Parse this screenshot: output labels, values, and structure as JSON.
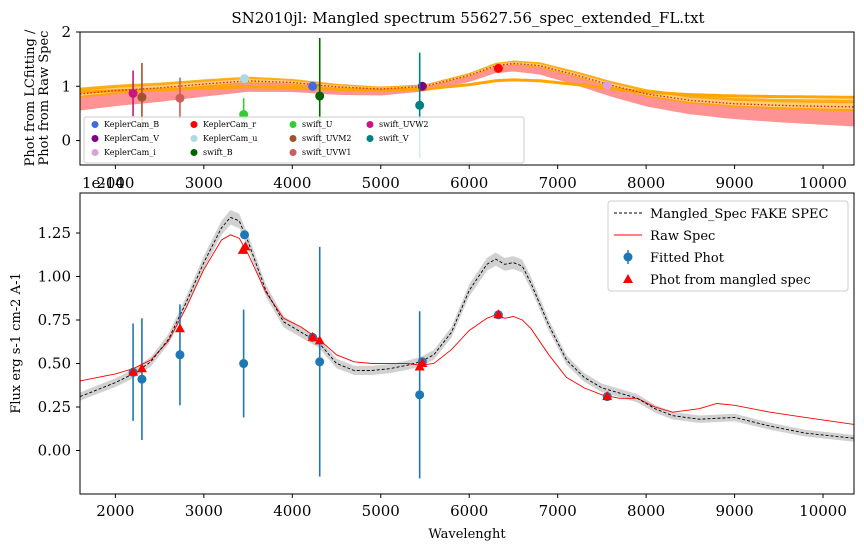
{
  "chart_data": [
    {
      "type": "scatter",
      "title": "SN2010jl: Mangled spectrum 55627.56_spec_extended_FL.txt",
      "ylabel_lines": [
        "Phot from LCfitting /",
        "Phot from Raw Spec"
      ],
      "xlabel": "",
      "xlim": [
        1600,
        10350
      ],
      "ylim": [
        -0.45,
        2.0
      ],
      "xticks": [
        2000,
        3000,
        4000,
        5000,
        6000,
        7000,
        8000,
        9000,
        10000
      ],
      "yticks": [
        0,
        1,
        2
      ],
      "xtick_labels": [
        "2000",
        "3000",
        "4000",
        "5000",
        "6000",
        "7000",
        "8000",
        "9000",
        "10000"
      ],
      "ytick_labels": [
        "0",
        "1",
        "2"
      ],
      "offset_text": "1e-14",
      "legend_position": "lower-left",
      "series": [
        {
          "name": "KeplerCam_B",
          "color": "#4169e1",
          "x": 4230,
          "y": 1.0,
          "err": 0
        },
        {
          "name": "KeplerCam_V",
          "color": "#800080",
          "x": 5470,
          "y": 1.0,
          "err": 0
        },
        {
          "name": "KeplerCam_i",
          "color": "#dda0dd",
          "x": 7560,
          "y": 1.02,
          "err": 0
        },
        {
          "name": "KeplerCam_r",
          "color": "#ff0000",
          "x": 6330,
          "y": 1.33,
          "err": 0
        },
        {
          "name": "KeplerCam_u",
          "color": "#add8e6",
          "x": 3460,
          "y": 1.14,
          "err": 0
        },
        {
          "name": "swift_B",
          "color": "#006400",
          "x": 4310,
          "y": 0.82,
          "err": 1.07
        },
        {
          "name": "swift_U",
          "color": "#32cd32",
          "x": 3450,
          "y": 0.48,
          "err": 0.3
        },
        {
          "name": "swift_UVM2",
          "color": "#a0522d",
          "x": 2300,
          "y": 0.8,
          "err": 0.63
        },
        {
          "name": "swift_UVW1",
          "color": "#cd5c5c",
          "x": 2730,
          "y": 0.78,
          "err": 0.38
        },
        {
          "name": "swift_UVW2",
          "color": "#c71585",
          "x": 2200,
          "y": 0.87,
          "err": 0.42
        },
        {
          "name": "swift_V",
          "color": "#008080",
          "x": 5440,
          "y": 0.65,
          "err": 0.97
        }
      ],
      "ratio_curve": {
        "color": "#e8202a",
        "x": [
          1600,
          2000,
          2500,
          3000,
          3500,
          4000,
          4500,
          5000,
          5500,
          6000,
          6300,
          6500,
          6800,
          7200,
          7600,
          8000,
          8500,
          9000,
          9500,
          10000,
          10350
        ],
        "y": [
          0.86,
          0.92,
          0.97,
          1.04,
          1.1,
          1.07,
          0.99,
          0.95,
          1.0,
          1.2,
          1.38,
          1.42,
          1.38,
          1.21,
          1.02,
          0.86,
          0.74,
          0.68,
          0.65,
          0.63,
          0.62
        ]
      },
      "band_colors": [
        "#ff7f7f",
        "#ffa500",
        "#ffd27f"
      ]
    },
    {
      "type": "line",
      "title": "",
      "xlabel": "Wavelenght",
      "ylabel": "Flux erg s-1 cm-2 A-1",
      "xlim": [
        1600,
        10350
      ],
      "ylim": [
        -0.25,
        1.48
      ],
      "xticks": [
        2000,
        3000,
        4000,
        5000,
        6000,
        7000,
        8000,
        9000,
        10000
      ],
      "yticks": [
        0,
        0.25,
        0.5,
        0.75,
        1.0,
        1.25
      ],
      "xtick_labels": [
        "2000",
        "3000",
        "4000",
        "5000",
        "6000",
        "7000",
        "8000",
        "9000",
        "10000"
      ],
      "ytick_labels": [
        "0.00",
        "0.25",
        "0.50",
        "0.75",
        "1.00",
        "1.25"
      ],
      "legend_position": "top-right",
      "legend": [
        "Mangled_Spec FAKE SPEC",
        "Raw Spec",
        "Fitted Phot",
        "Phot from mangled spec"
      ],
      "mangled_spec": {
        "color": "#000000",
        "x": [
          1600,
          1800,
          2000,
          2200,
          2400,
          2600,
          2800,
          3000,
          3200,
          3300,
          3400,
          3500,
          3700,
          3900,
          4100,
          4300,
          4500,
          4700,
          4900,
          5100,
          5300,
          5450,
          5600,
          5800,
          6000,
          6200,
          6300,
          6400,
          6500,
          6600,
          6700,
          6900,
          7100,
          7300,
          7500,
          7700,
          7900,
          8100,
          8300,
          8600,
          9000,
          9400,
          9800,
          10350
        ],
        "y": [
          0.31,
          0.35,
          0.39,
          0.44,
          0.51,
          0.64,
          0.85,
          1.08,
          1.28,
          1.34,
          1.32,
          1.2,
          0.92,
          0.74,
          0.68,
          0.62,
          0.5,
          0.46,
          0.46,
          0.47,
          0.49,
          0.51,
          0.55,
          0.68,
          0.92,
          1.07,
          1.1,
          1.07,
          1.08,
          1.06,
          0.96,
          0.72,
          0.52,
          0.42,
          0.36,
          0.33,
          0.3,
          0.24,
          0.2,
          0.18,
          0.19,
          0.14,
          0.1,
          0.07
        ]
      },
      "mangled_band_half_width": 0.03,
      "raw_spec": {
        "color": "#ff0000",
        "x": [
          1600,
          1800,
          2000,
          2200,
          2400,
          2600,
          2800,
          3000,
          3200,
          3300,
          3400,
          3500,
          3700,
          3900,
          4100,
          4300,
          4500,
          4700,
          4900,
          5100,
          5300,
          5450,
          5600,
          5800,
          6000,
          6200,
          6300,
          6400,
          6500,
          6600,
          6700,
          6900,
          7100,
          7300,
          7500,
          7700,
          7900,
          8100,
          8300,
          8600,
          8800,
          9000,
          9400,
          9800,
          10350
        ],
        "y": [
          0.4,
          0.42,
          0.44,
          0.47,
          0.52,
          0.63,
          0.82,
          1.04,
          1.21,
          1.24,
          1.22,
          1.13,
          0.91,
          0.76,
          0.71,
          0.64,
          0.55,
          0.51,
          0.5,
          0.5,
          0.5,
          0.49,
          0.5,
          0.58,
          0.69,
          0.76,
          0.78,
          0.76,
          0.77,
          0.75,
          0.7,
          0.55,
          0.42,
          0.36,
          0.32,
          0.3,
          0.3,
          0.25,
          0.22,
          0.24,
          0.27,
          0.26,
          0.22,
          0.19,
          0.15
        ]
      },
      "fitted_phot": {
        "color": "#1f77b4",
        "points": [
          {
            "x": 2200,
            "y": 0.45,
            "err": 0.28
          },
          {
            "x": 2300,
            "y": 0.41,
            "err": 0.35
          },
          {
            "x": 2730,
            "y": 0.55,
            "err": 0.29
          },
          {
            "x": 3450,
            "y": 0.5,
            "err": 0.31
          },
          {
            "x": 3460,
            "y": 1.24,
            "err": 0.02
          },
          {
            "x": 4230,
            "y": 0.65,
            "err": 0.01
          },
          {
            "x": 4310,
            "y": 0.51,
            "err": 0.66
          },
          {
            "x": 5440,
            "y": 0.32,
            "err": 0.48
          },
          {
            "x": 5470,
            "y": 0.51,
            "err": 0.01
          },
          {
            "x": 6330,
            "y": 0.78,
            "err": 0.01
          },
          {
            "x": 7560,
            "y": 0.31,
            "err": 0.01
          }
        ]
      },
      "phot_from_mangled": {
        "color": "#ff0000",
        "points": [
          {
            "x": 2200,
            "y": 0.45
          },
          {
            "x": 2300,
            "y": 0.47
          },
          {
            "x": 2730,
            "y": 0.7
          },
          {
            "x": 3440,
            "y": 1.15
          },
          {
            "x": 3470,
            "y": 1.17
          },
          {
            "x": 4230,
            "y": 0.65
          },
          {
            "x": 4310,
            "y": 0.63
          },
          {
            "x": 5440,
            "y": 0.48
          },
          {
            "x": 5470,
            "y": 0.5
          },
          {
            "x": 6330,
            "y": 0.78
          },
          {
            "x": 7560,
            "y": 0.31
          }
        ]
      }
    }
  ]
}
